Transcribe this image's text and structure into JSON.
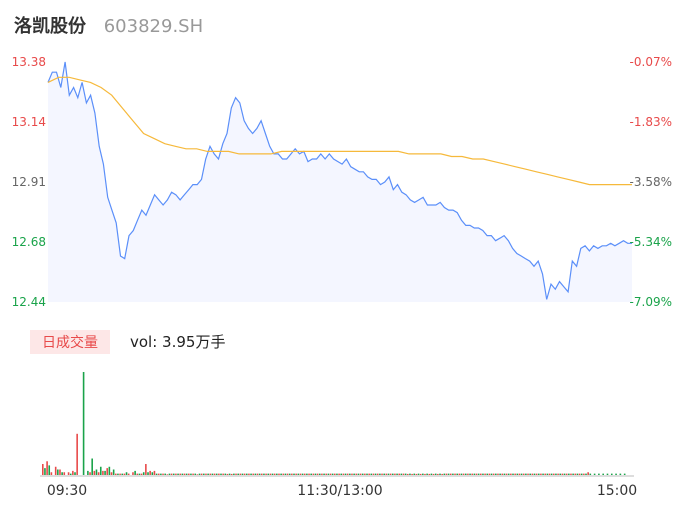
{
  "header": {
    "name": "洛凯股份",
    "code": "603829.SH"
  },
  "chart_data": [
    {
      "type": "line",
      "price_ticks": [
        "13.38",
        "13.14",
        "12.91",
        "12.68",
        "12.44"
      ],
      "pct_ticks": [
        "-0.07%",
        "-1.83%",
        "-3.58%",
        "-5.34%",
        "-7.09%"
      ],
      "ylim": [
        12.44,
        13.38
      ],
      "x_ticks": [
        "09:30",
        "11:30/13:00",
        "15:00"
      ],
      "series": [
        {
          "values": [
            13.3,
            13.34,
            13.34,
            13.28,
            13.38,
            13.25,
            13.28,
            13.24,
            13.3,
            13.22,
            13.25,
            13.18,
            13.05,
            12.98,
            12.85,
            12.8,
            12.75,
            12.62,
            12.61,
            12.7,
            12.72,
            12.76,
            12.8,
            12.78,
            12.82,
            12.86,
            12.84,
            12.82,
            12.84,
            12.87,
            12.86,
            12.84,
            12.86,
            12.88,
            12.9,
            12.9,
            12.92,
            13.0,
            13.05,
            13.02,
            13.0,
            13.06,
            13.1,
            13.2,
            13.24,
            13.22,
            13.15,
            13.12,
            13.1,
            13.12,
            13.15,
            13.1,
            13.05,
            13.02,
            13.02,
            13.0,
            13.0,
            13.02,
            13.04,
            13.02,
            13.03,
            12.99,
            13.0,
            13.0,
            13.02,
            13.0,
            13.02,
            13.0,
            12.99,
            12.98,
            13.0,
            12.97,
            12.96,
            12.95,
            12.95,
            12.93,
            12.92,
            12.92,
            12.9,
            12.91,
            12.93,
            12.88,
            12.9,
            12.87,
            12.86,
            12.84,
            12.83,
            12.84,
            12.85,
            12.82,
            12.82,
            12.82,
            12.83,
            12.81,
            12.8,
            12.8,
            12.79,
            12.76,
            12.74,
            12.74,
            12.73,
            12.73,
            12.72,
            12.7,
            12.7,
            12.68,
            12.69,
            12.7,
            12.68,
            12.65,
            12.63,
            12.62,
            12.61,
            12.6,
            12.58,
            12.6,
            12.55,
            12.45,
            12.51,
            12.49,
            12.52,
            12.5,
            12.48,
            12.6,
            12.58,
            12.65,
            12.66,
            12.64,
            12.66,
            12.65,
            12.66,
            12.66,
            12.67,
            12.66,
            12.67,
            12.68,
            12.67,
            12.67
          ]
        },
        {
          "values": [
            13.3,
            13.32,
            13.32,
            13.31,
            13.3,
            13.28,
            13.25,
            13.2,
            13.15,
            13.1,
            13.08,
            13.06,
            13.05,
            13.04,
            13.04,
            13.03,
            13.03,
            13.03,
            13.02,
            13.02,
            13.02,
            13.02,
            13.03,
            13.03,
            13.03,
            13.03,
            13.03,
            13.03,
            13.03,
            13.03,
            13.03,
            13.03,
            13.03,
            13.03,
            13.02,
            13.02,
            13.02,
            13.02,
            13.01,
            13.01,
            13.0,
            13.0,
            12.99,
            12.98,
            12.97,
            12.96,
            12.95,
            12.94,
            12.93,
            12.92,
            12.91,
            12.9,
            12.9,
            12.9,
            12.9,
            12.9
          ]
        }
      ],
      "volume": {
        "label": "日成交量",
        "readout": "vol: 3.95万手",
        "series": [
          {
            "name": "up",
            "values": [
              8,
              10,
              2,
              6,
              4,
              2,
              2,
              3,
              30,
              0,
              0,
              2,
              3,
              2,
              3,
              5,
              2,
              1,
              1,
              1,
              1,
              2,
              1,
              1,
              8,
              3,
              3,
              1,
              1,
              0.5,
              1,
              1,
              1,
              1,
              1,
              1,
              0.5,
              1,
              1,
              1,
              1,
              1,
              1,
              0.8,
              0.8,
              1,
              1,
              1,
              1,
              1,
              1,
              1,
              1,
              1,
              1,
              1,
              1,
              1,
              1,
              1,
              1,
              1,
              1,
              1,
              1,
              1,
              1,
              1,
              1,
              1,
              1,
              1,
              1,
              1,
              1,
              1,
              1,
              1,
              1,
              1,
              1,
              1,
              1,
              1,
              1,
              0.8,
              0.8,
              0.8,
              0.8,
              0.8,
              0.8,
              0.8,
              0.8,
              0.8,
              1,
              1,
              1,
              1,
              1,
              1,
              1,
              1,
              1,
              1,
              1,
              1,
              1,
              1,
              1,
              1,
              1,
              1,
              1,
              1,
              1,
              1,
              1,
              1,
              1,
              1,
              1,
              1,
              1,
              1,
              1,
              1,
              1,
              2
            ]
          },
          {
            "name": "down",
            "values": [
              5,
              7,
              0,
              4,
              2,
              0,
              1,
              2,
              0,
              75,
              3,
              12,
              4,
              6,
              3,
              6,
              4,
              1,
              1,
              2,
              0,
              3,
              1,
              2,
              2,
              2,
              1,
              1,
              1,
              1,
              1,
              1,
              1,
              1,
              1,
              1,
              1,
              1,
              1,
              1,
              1,
              1,
              1,
              1,
              1,
              1,
              1,
              1,
              1,
              1,
              1,
              1,
              1,
              1,
              1,
              1,
              1,
              1,
              1,
              1,
              1,
              1,
              1,
              1,
              1,
              1,
              1,
              1,
              1,
              1,
              1,
              1,
              1,
              1,
              1,
              1,
              1,
              1,
              1,
              1,
              1,
              1,
              1,
              1,
              1,
              1,
              1,
              1,
              1,
              1,
              1,
              1,
              1,
              1,
              1,
              1,
              1,
              1,
              1,
              1,
              1,
              1,
              1,
              1,
              1,
              1,
              1,
              1,
              1,
              1,
              1,
              1,
              1,
              1,
              1,
              1,
              1,
              1,
              1,
              1,
              1,
              1,
              1,
              1,
              1,
              1,
              1,
              1,
              1,
              1,
              1,
              1,
              1,
              1,
              1,
              1
            ]
          }
        ]
      },
      "colors": {
        "price_line": "#5b8ff9",
        "avg_line": "#f6b93b",
        "up": "#e84a4a",
        "down": "#1aa34a",
        "neutral_axis": "#666666",
        "area_fill": "#f4f6ff",
        "grid": "#e6e6e6",
        "label_bg": "#fde7e7",
        "label_text": "#e84a4a"
      }
    }
  ]
}
